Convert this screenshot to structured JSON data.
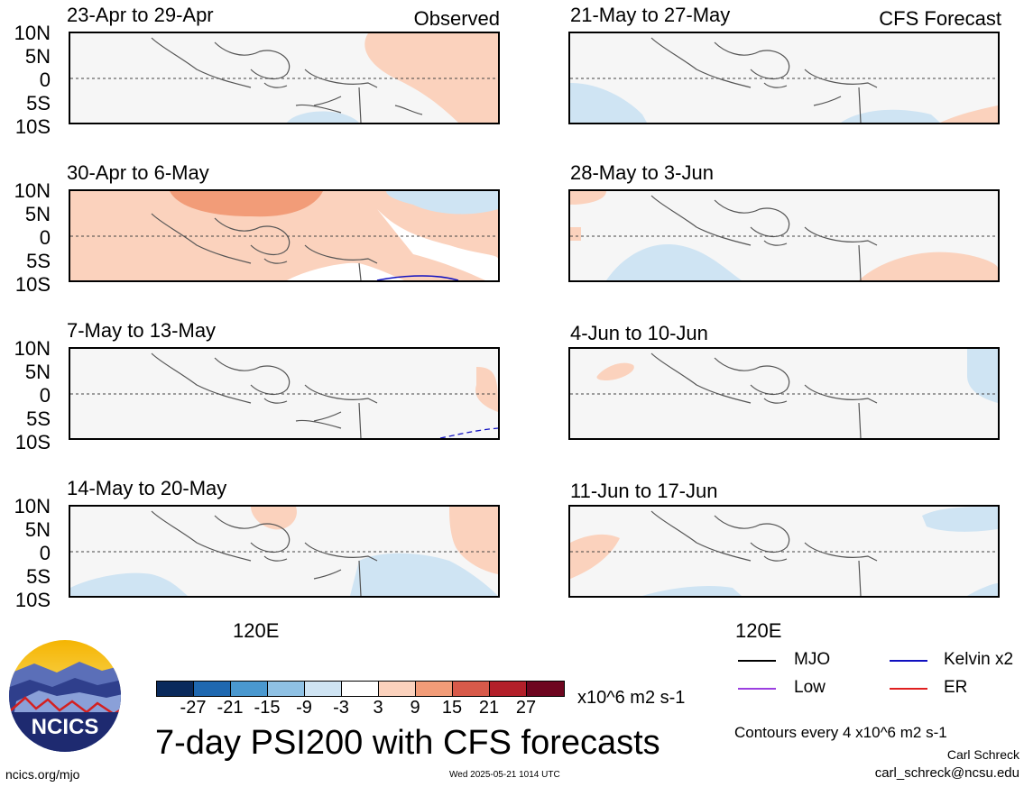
{
  "left_column_label": "Observed",
  "right_column_label": "CFS Forecast",
  "y_ticks": [
    "10N",
    "5N",
    "0",
    "5S",
    "10S"
  ],
  "x_tick": "120E",
  "panels": [
    {
      "title": "23-Apr to 29-Apr"
    },
    {
      "title": "30-Apr to 6-May"
    },
    {
      "title": "7-May to 13-May"
    },
    {
      "title": "14-May to 20-May"
    },
    {
      "title": "21-May to 27-May"
    },
    {
      "title": "28-May to 3-Jun"
    },
    {
      "title": "4-Jun to 10-Jun"
    },
    {
      "title": "11-Jun to 17-Jun"
    }
  ],
  "colorbar": {
    "ticks": [
      "-27",
      "-21",
      "-15",
      "-9",
      "-3",
      "3",
      "9",
      "15",
      "21",
      "27"
    ],
    "colors": [
      "#0a2a5c",
      "#1f68b0",
      "#4a98cf",
      "#8fc1e4",
      "#cfe4f3",
      "#ffffff",
      "#fbd2bd",
      "#f29c78",
      "#d85a4a",
      "#b3202a",
      "#6e0620"
    ],
    "units": "x10^6 m2 s-1"
  },
  "title": "7-day PSI200 with CFS forecasts",
  "legend": [
    {
      "label": "MJO",
      "color": "#000000"
    },
    {
      "label": "Kelvin x2",
      "color": "#1010c0"
    },
    {
      "label": "Low",
      "color": "#9b3fe0"
    },
    {
      "label": "ER",
      "color": "#e02020"
    }
  ],
  "contours_note": "Contours every 4 x10^6 m2 s-1",
  "author": "Carl Schreck",
  "email": "carl_schreck@ncsu.edu",
  "website": "ncics.org/mjo",
  "timestamp": "Wed 2025-05-21 1014 UTC",
  "logo_text": "NCICS"
}
